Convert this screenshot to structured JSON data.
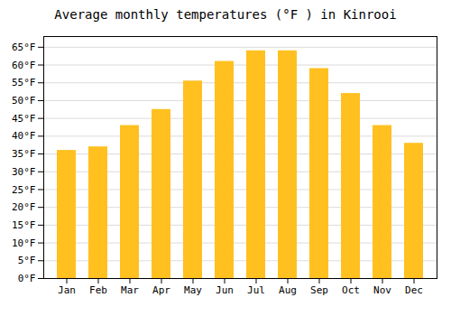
{
  "chart_data": {
    "type": "bar",
    "title": "Average monthly temperatures (°F ) in Kinrooi",
    "categories": [
      "Jan",
      "Feb",
      "Mar",
      "Apr",
      "May",
      "Jun",
      "Jul",
      "Aug",
      "Sep",
      "Oct",
      "Nov",
      "Dec"
    ],
    "values": [
      36.0,
      37.0,
      43.0,
      47.5,
      55.5,
      61.0,
      64.0,
      64.0,
      59.0,
      52.0,
      43.0,
      38.0
    ],
    "color": "#FFC020",
    "ylim": [
      0,
      68
    ],
    "yticks": [
      {
        "value": 0,
        "label": "0°F"
      },
      {
        "value": 5,
        "label": "5°F"
      },
      {
        "value": 10,
        "label": "10°F"
      },
      {
        "value": 15,
        "label": "15°F"
      },
      {
        "value": 20,
        "label": "20°F"
      },
      {
        "value": 25,
        "label": "25°F"
      },
      {
        "value": 30,
        "label": "30°F"
      },
      {
        "value": 35,
        "label": "35°F"
      },
      {
        "value": 40,
        "label": "40°F"
      },
      {
        "value": 45,
        "label": "45°F"
      },
      {
        "value": 50,
        "label": "50°F"
      },
      {
        "value": 55,
        "label": "55°F"
      },
      {
        "value": 60,
        "label": "60°F"
      },
      {
        "value": 65,
        "label": "65°F"
      }
    ],
    "grid": true
  }
}
